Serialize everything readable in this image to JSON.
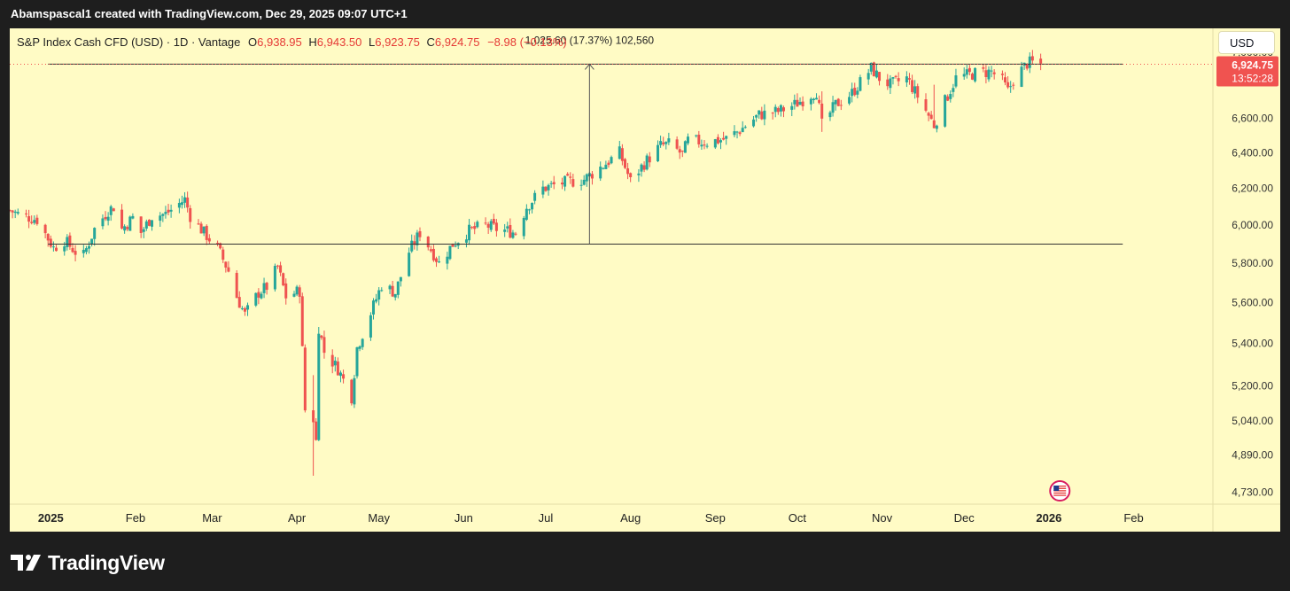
{
  "header": {
    "text": "Abamspascal1 created with TradingView.com, Dec 29, 2025 09:07 UTC+1"
  },
  "legend": {
    "symbol": "S&P Index Cash CFD (USD) · 1D · Vantage",
    "o_label": "O",
    "o_value": "6,938.95",
    "h_label": "H",
    "h_value": "6,943.50",
    "l_label": "L",
    "l_value": "6,923.75",
    "c_label": "C",
    "c_value": "6,924.75",
    "change": "−8.98 (−0.13%)"
  },
  "currency_button": "USD",
  "footer": {
    "brand": "TradingView",
    "logo_icon": "tradingview-logo-icon"
  },
  "colors": {
    "up": "#26a69a",
    "down": "#ef5350",
    "background": "#fffbc5",
    "price_tag": "#f05350"
  },
  "chart_data": {
    "type": "candlestick",
    "timeframe": "1D",
    "y_axis": {
      "scale": "log",
      "ticks": [
        4730,
        4890,
        5040,
        5200,
        5400,
        5600,
        5800,
        6000,
        6200,
        6400,
        6600,
        7000
      ],
      "tick_labels": [
        "4,730.00",
        "4,890.00",
        "5,040.00",
        "5,200.00",
        "5,400.00",
        "5,600.00",
        "5,800.00",
        "6,000.00",
        "6,200.00",
        "6,400.00",
        "6,600.00",
        "7,000.00"
      ],
      "range": [
        4680,
        7150
      ]
    },
    "x_axis": {
      "labels": [
        "2025",
        "Feb",
        "Mar",
        "Apr",
        "May",
        "Jun",
        "Jul",
        "Aug",
        "Sep",
        "Oct",
        "Nov",
        "Dec",
        "2026",
        "Feb"
      ],
      "label_dates": [
        "2025-01-01",
        "2025-02-01",
        "2025-03-01",
        "2025-04-01",
        "2025-05-01",
        "2025-06-01",
        "2025-07-01",
        "2025-08-01",
        "2025-09-01",
        "2025-10-01",
        "2025-11-01",
        "2025-12-01",
        "2026-01-01",
        "2026-02-01"
      ],
      "bold_labels": [
        "2025",
        "2026"
      ],
      "range": [
        "2024-12-17",
        "2026-03-01"
      ]
    },
    "price_path": [
      [
        "2024-12-17",
        6080
      ],
      [
        "2024-12-20",
        6060
      ],
      [
        "2024-12-27",
        6030
      ],
      [
        "2025-01-02",
        5880
      ],
      [
        "2025-01-06",
        5920
      ],
      [
        "2025-01-10",
        5860
      ],
      [
        "2025-01-13",
        5840
      ],
      [
        "2025-01-17",
        5980
      ],
      [
        "2025-01-22",
        6080
      ],
      [
        "2025-01-24",
        6100
      ],
      [
        "2025-01-27",
        5980
      ],
      [
        "2025-01-31",
        6040
      ],
      [
        "2025-02-03",
        5960
      ],
      [
        "2025-02-07",
        6050
      ],
      [
        "2025-02-12",
        6060
      ],
      [
        "2025-02-19",
        6140
      ],
      [
        "2025-02-21",
        6050
      ],
      [
        "2025-02-26",
        5960
      ],
      [
        "2025-03-03",
        5880
      ],
      [
        "2025-03-07",
        5760
      ],
      [
        "2025-03-10",
        5630
      ],
      [
        "2025-03-13",
        5540
      ],
      [
        "2025-03-18",
        5650
      ],
      [
        "2025-03-21",
        5680
      ],
      [
        "2025-03-25",
        5780
      ],
      [
        "2025-03-28",
        5630
      ],
      [
        "2025-04-02",
        5660
      ],
      [
        "2025-04-04",
        5090
      ],
      [
        "2025-04-07",
        5050
      ],
      [
        "2025-04-08",
        4950
      ],
      [
        "2025-04-09",
        5480
      ],
      [
        "2025-04-11",
        5360
      ],
      [
        "2025-04-16",
        5280
      ],
      [
        "2025-04-21",
        5150
      ],
      [
        "2025-04-23",
        5380
      ],
      [
        "2025-04-28",
        5550
      ],
      [
        "2025-05-02",
        5690
      ],
      [
        "2025-05-07",
        5650
      ],
      [
        "2025-05-12",
        5860
      ],
      [
        "2025-05-16",
        5960
      ],
      [
        "2025-05-21",
        5850
      ],
      [
        "2025-05-23",
        5800
      ],
      [
        "2025-05-28",
        5900
      ],
      [
        "2025-06-03",
        5970
      ],
      [
        "2025-06-09",
        6000
      ],
      [
        "2025-06-13",
        5980
      ],
      [
        "2025-06-17",
        5970
      ],
      [
        "2025-06-20",
        5960
      ],
      [
        "2025-06-24",
        6100
      ],
      [
        "2025-06-30",
        6200
      ],
      [
        "2025-07-07",
        6230
      ],
      [
        "2025-07-15",
        6250
      ],
      [
        "2025-07-23",
        6340
      ],
      [
        "2025-07-28",
        6400
      ],
      [
        "2025-08-01",
        6240
      ],
      [
        "2025-08-06",
        6340
      ],
      [
        "2025-08-12",
        6440
      ],
      [
        "2025-08-15",
        6450
      ],
      [
        "2025-08-20",
        6390
      ],
      [
        "2025-08-22",
        6470
      ],
      [
        "2025-08-29",
        6460
      ],
      [
        "2025-09-05",
        6480
      ],
      [
        "2025-09-10",
        6530
      ],
      [
        "2025-09-17",
        6620
      ],
      [
        "2025-09-24",
        6640
      ],
      [
        "2025-09-30",
        6680
      ],
      [
        "2025-10-08",
        6760
      ],
      [
        "2025-10-10",
        6560
      ],
      [
        "2025-10-15",
        6680
      ],
      [
        "2025-10-21",
        6750
      ],
      [
        "2025-10-28",
        6900
      ],
      [
        "2025-10-31",
        6840
      ],
      [
        "2025-11-04",
        6800
      ],
      [
        "2025-11-10",
        6840
      ],
      [
        "2025-11-14",
        6730
      ],
      [
        "2025-11-20",
        6560
      ],
      [
        "2025-11-24",
        6700
      ],
      [
        "2025-11-28",
        6840
      ],
      [
        "2025-12-05",
        6870
      ],
      [
        "2025-12-11",
        6880
      ],
      [
        "2025-12-15",
        6820
      ],
      [
        "2025-12-17",
        6760
      ],
      [
        "2025-12-19",
        6830
      ],
      [
        "2025-12-24",
        6930
      ],
      [
        "2025-12-26",
        6935
      ],
      [
        "2025-12-29",
        6925
      ]
    ],
    "extreme_wicks": [
      [
        "2025-04-07",
        4800,
        5250
      ],
      [
        "2025-04-09",
        4950,
        5480
      ],
      [
        "2025-10-10",
        6520,
        6760
      ],
      [
        "2025-11-20",
        6540,
        6800
      ]
    ],
    "last_price": {
      "label": "6,924.75",
      "countdown": "13:52:28",
      "value": 6924.75
    },
    "measure": {
      "label": "1,025.60 (17.37%) 102,560",
      "from": [
        "2025-07-17",
        5900
      ],
      "to": [
        "2025-07-17",
        6925.6
      ]
    },
    "horizontal_lines": [
      {
        "value": 5900,
        "from": "2024-12-31",
        "to": "2026-01-28"
      },
      {
        "value": 6925.6,
        "from": "2024-12-31",
        "to": "2026-01-28"
      }
    ],
    "events_marker": {
      "date": "2026-01-05",
      "icon": "us-flag-event-icon"
    }
  }
}
